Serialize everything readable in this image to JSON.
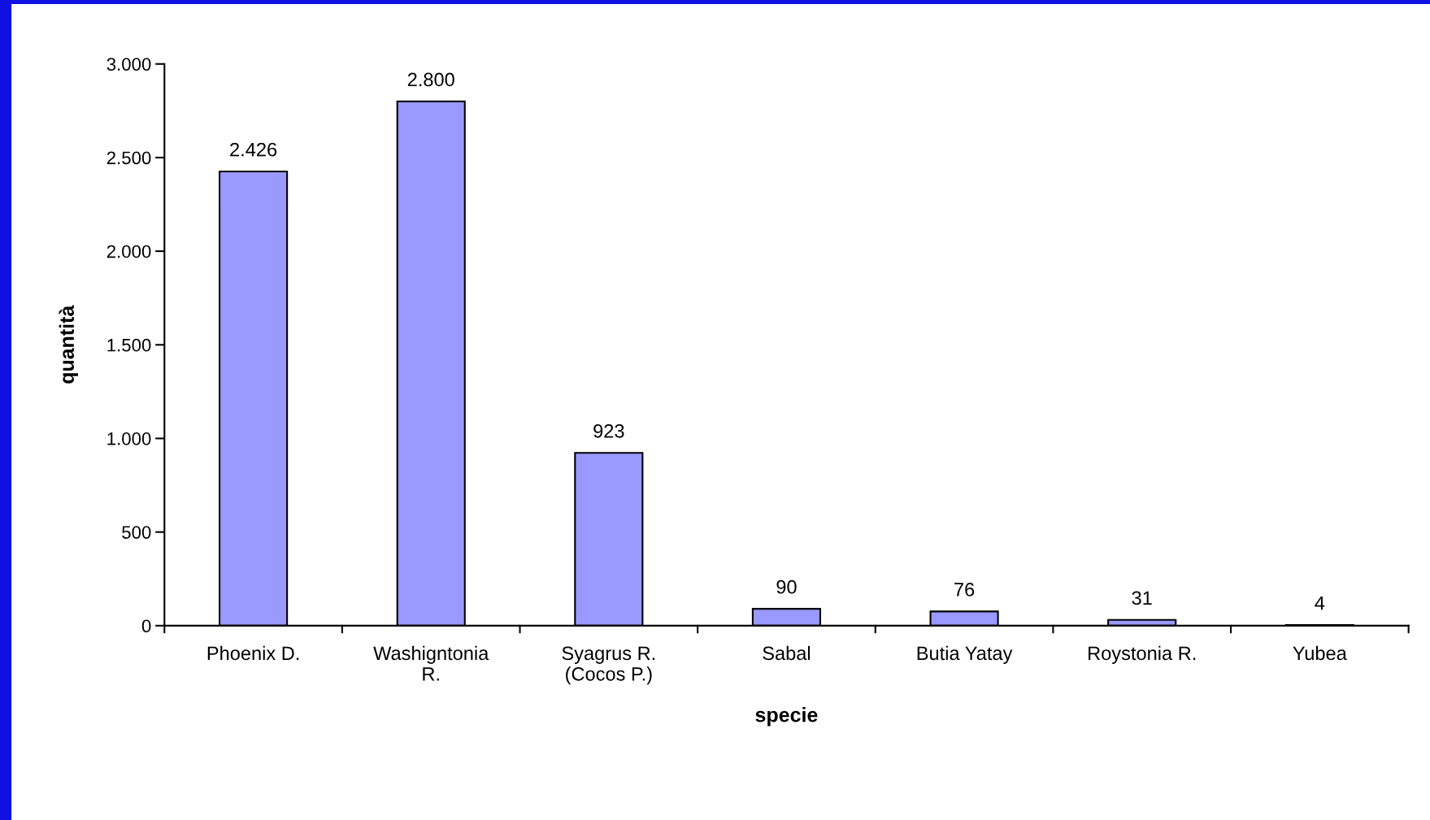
{
  "chart_data": {
    "type": "bar",
    "categories": [
      "Phoenix D.",
      "Washigntonia\nR.",
      "Syagrus R.\n(Cocos P.)",
      "Sabal",
      "Butia Yatay",
      "Roystonia R.",
      "Yubea"
    ],
    "values": [
      2426,
      2800,
      923,
      90,
      76,
      31,
      4
    ],
    "value_labels": [
      "2.426",
      "2.800",
      "923",
      "90",
      "76",
      "31",
      "4"
    ],
    "color": "#9999ff",
    "xlabel": "specie",
    "ylabel": "quantità",
    "ylim": [
      0,
      3000
    ],
    "yticks": [
      {
        "value": 0,
        "label": "0"
      },
      {
        "value": 500,
        "label": "500"
      },
      {
        "value": 1000,
        "label": "1.000"
      },
      {
        "value": 1500,
        "label": "1.500"
      },
      {
        "value": 2000,
        "label": "2.000"
      },
      {
        "value": 2500,
        "label": "2.500"
      },
      {
        "value": 3000,
        "label": "3.000"
      }
    ],
    "grid": false
  }
}
